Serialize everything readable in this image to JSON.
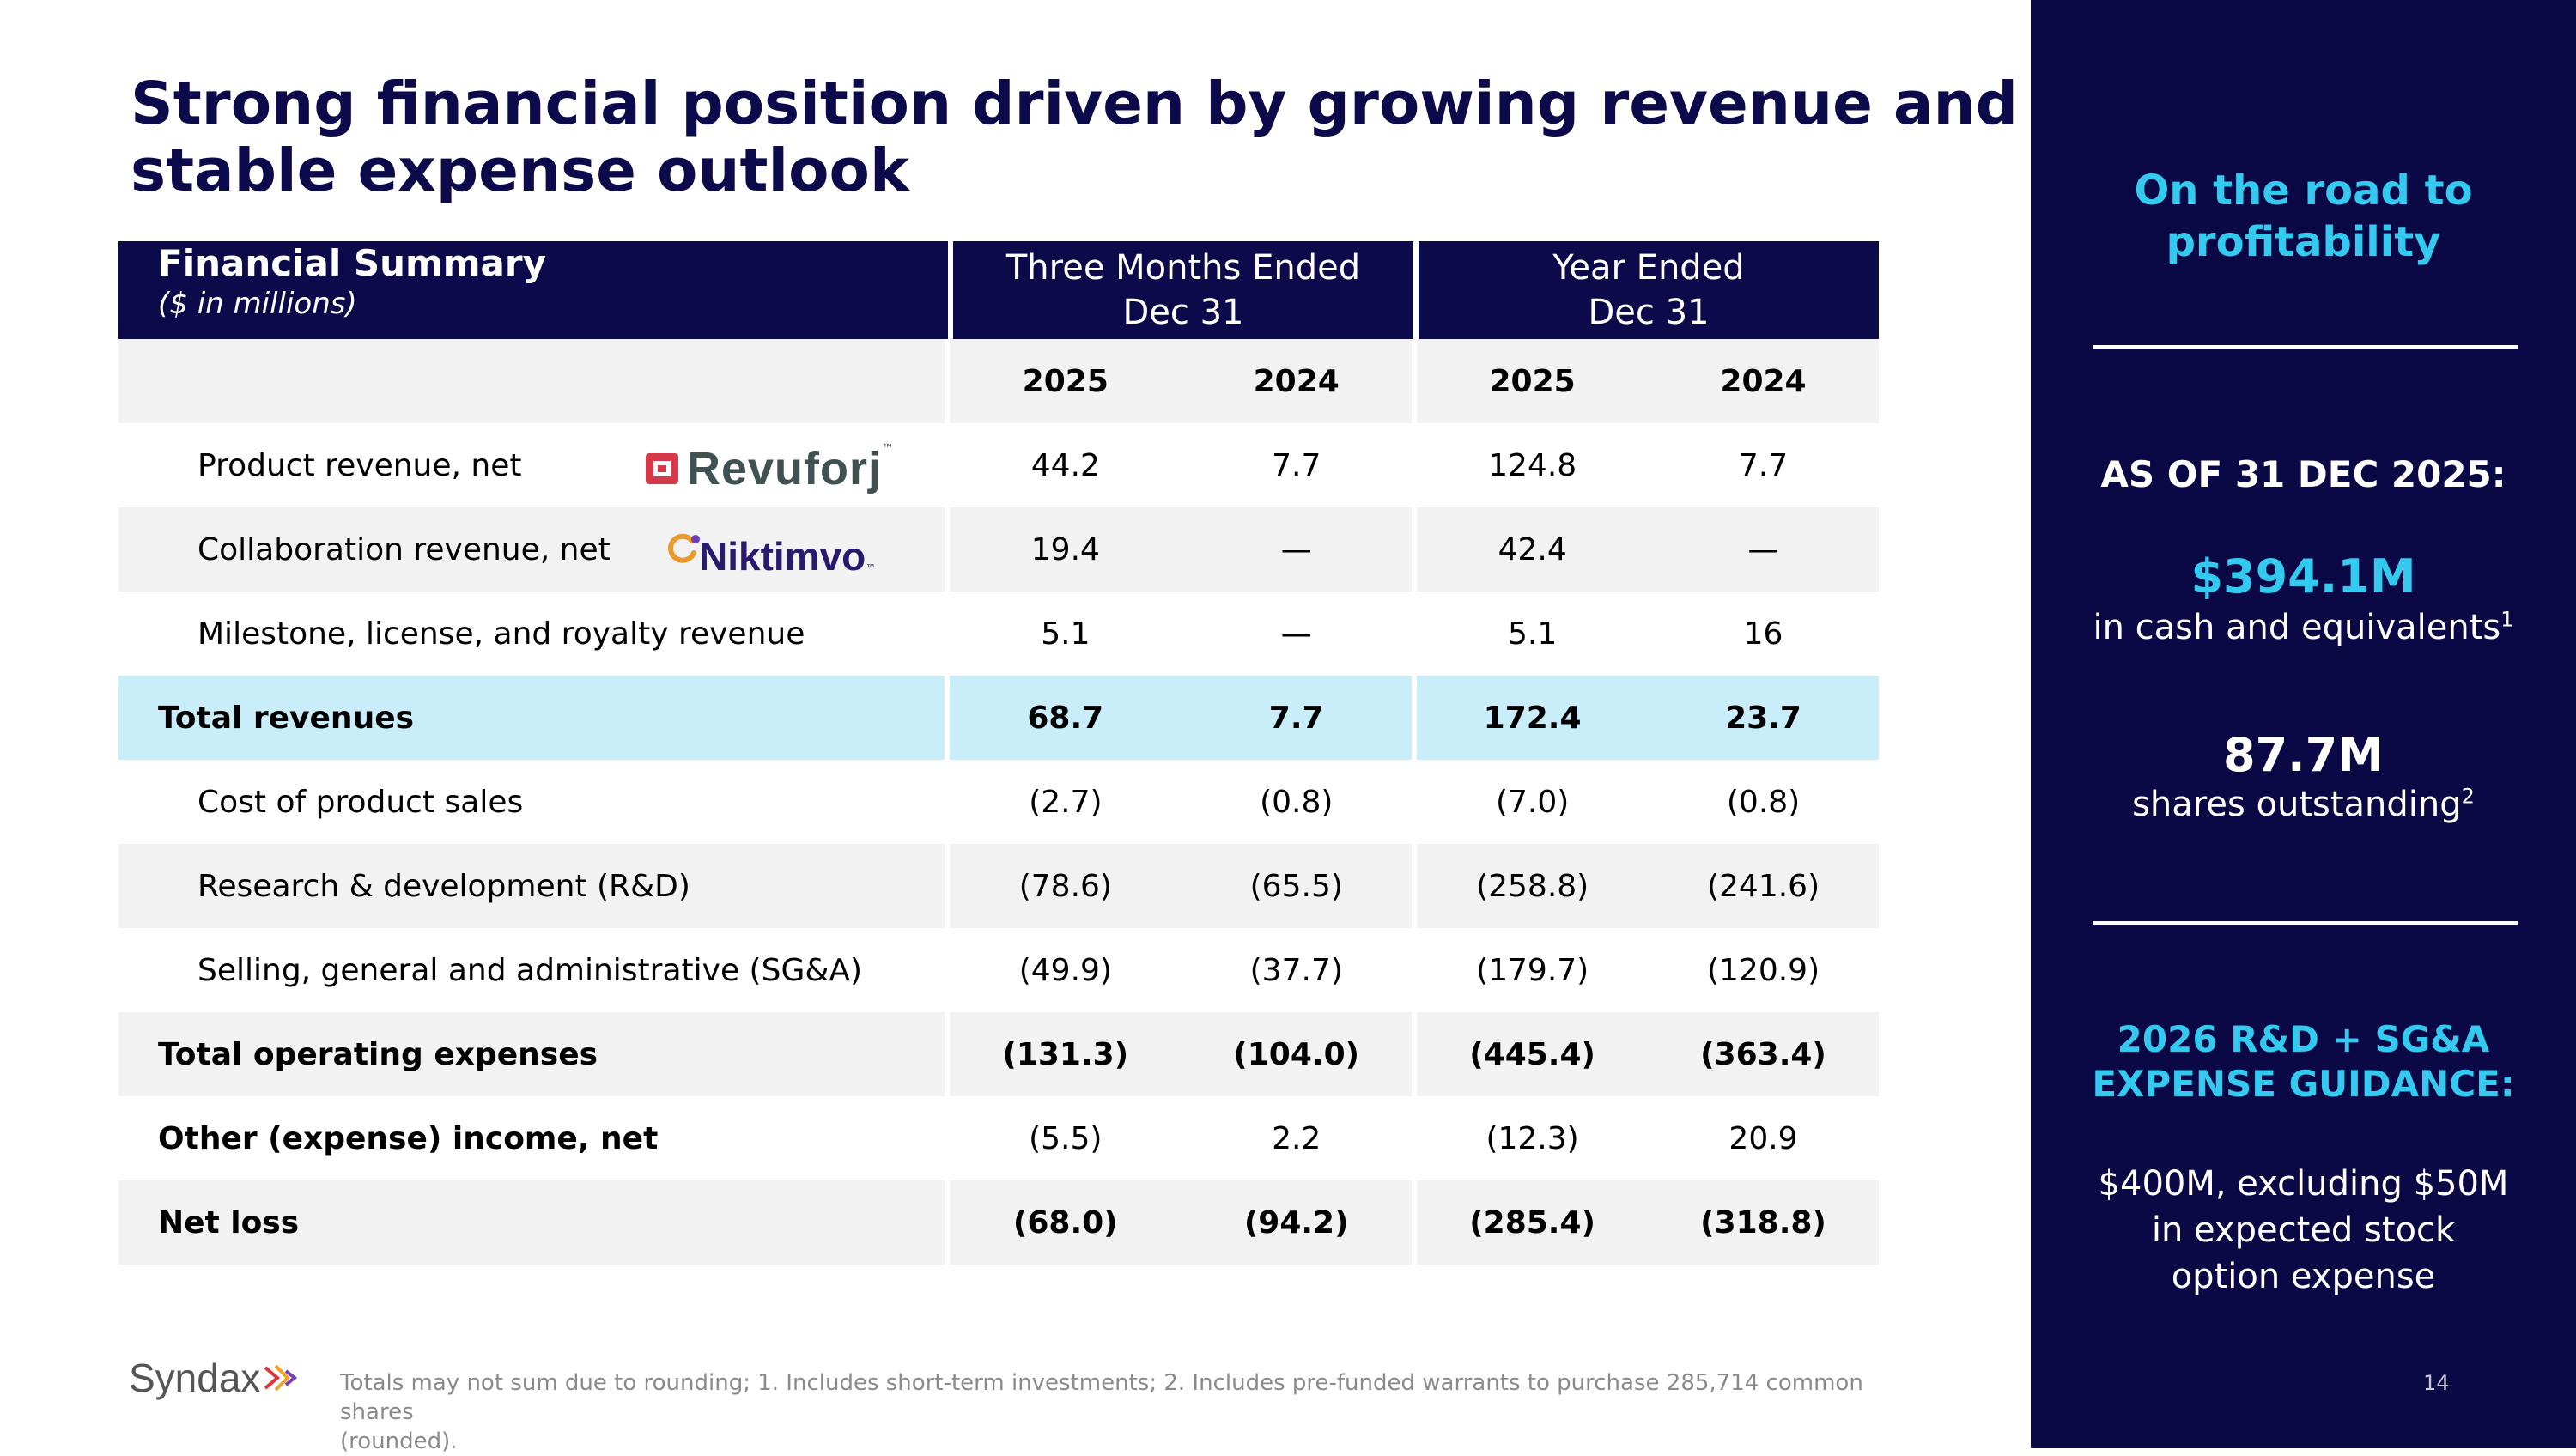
{
  "title": "Strong financial position driven by growing revenue and stable expense outlook",
  "table": {
    "header": {
      "label": "Financial Summary",
      "sublabel": "($ in millions)",
      "group1": [
        "Three Months Ended",
        "Dec 31"
      ],
      "group2": [
        "Year Ended",
        "Dec 31"
      ],
      "years": [
        "2025",
        "2024",
        "2025",
        "2024"
      ]
    },
    "rows": [
      {
        "label": "Product revenue, net",
        "values": [
          "44.2",
          "7.7",
          "124.8",
          "7.7"
        ]
      },
      {
        "label": "Collaboration revenue, net",
        "values": [
          "19.4",
          "—",
          "42.4",
          "—"
        ]
      },
      {
        "label": "Milestone, license, and royalty revenue",
        "values": [
          "5.1",
          "—",
          "5.1",
          "16"
        ]
      },
      {
        "label": "Total revenues",
        "values": [
          "68.7",
          "7.7",
          "172.4",
          "23.7"
        ]
      },
      {
        "label": "Cost of product sales",
        "values": [
          "(2.7)",
          "(0.8)",
          "(7.0)",
          "(0.8)"
        ]
      },
      {
        "label": "Research & development (R&D)",
        "values": [
          "(78.6)",
          "(65.5)",
          "(258.8)",
          "(241.6)"
        ]
      },
      {
        "label": "Selling, general and administrative (SG&A)",
        "values": [
          "(49.9)",
          "(37.7)",
          "(179.7)",
          "(120.9)"
        ]
      },
      {
        "label": "Total operating expenses",
        "values": [
          "(131.3)",
          "(104.0)",
          "(445.4)",
          "(363.4)"
        ]
      },
      {
        "label": "Other (expense) income, net",
        "values": [
          "(5.5)",
          "2.2",
          "(12.3)",
          "20.9"
        ]
      },
      {
        "label": "Net loss",
        "values": [
          "(68.0)",
          "(94.2)",
          "(285.4)",
          "(318.8)"
        ]
      }
    ],
    "logos": {
      "revuforj": "Revuforj",
      "niktimvo": "Niktimvo"
    }
  },
  "sidebar": {
    "road": [
      "On the road to",
      "profitability"
    ],
    "as_of": "AS OF 31 DEC 2025:",
    "cash_value": "$394.1M",
    "cash_label": "in cash and equivalents",
    "cash_sup": "1",
    "shares_value": "87.7M",
    "shares_label": "shares outstanding",
    "shares_sup": "2",
    "guidance_title": [
      "2026 R&D + SG&A",
      "EXPENSE GUIDANCE:"
    ],
    "guidance_body": [
      "$400M, excluding $50M",
      "in expected stock",
      "option expense"
    ],
    "page_number": "14"
  },
  "footer": {
    "brand": "Syndax",
    "footnote_line1": "Totals may not sum due to rounding; 1. Includes short-term investments; 2. Includes pre-funded warrants to purchase 285,714 common shares",
    "footnote_line2": "(rounded)."
  },
  "colors": {
    "navy": "#0c0a4a",
    "accent": "#34c9ee",
    "highlight": "#c9eef9"
  }
}
